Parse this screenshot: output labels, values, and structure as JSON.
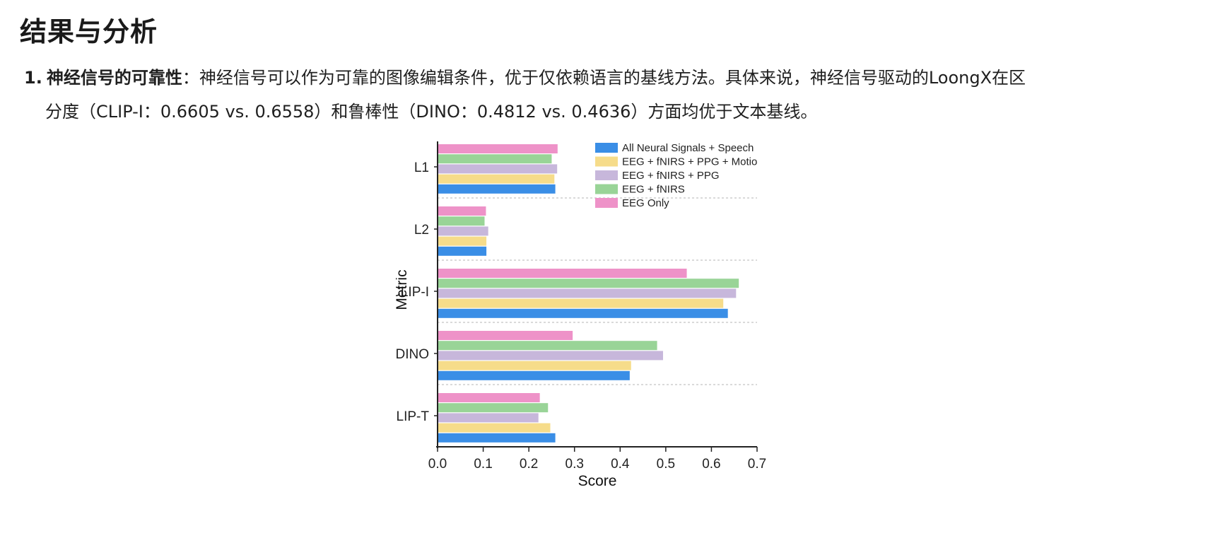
{
  "heading": "结果与分析",
  "item": {
    "number": "1.",
    "bold_label": "神经信号的可靠性",
    "text_line1": "：神经信号可以作为可靠的图像编辑条件，优于仅依赖语言的基线方法。具体来说，神经信号驱动的LoongX在区",
    "text_line2": "分度（CLIP-I：0.6605 vs. 0.6558）和鲁棒性（DINO：0.4812 vs. 0.4636）方面均优于文本基线。"
  },
  "chart_data": {
    "type": "bar",
    "orientation": "horizontal",
    "categories": [
      "L1",
      "L2",
      "CLIP-I",
      "DINO",
      "CLIP-T"
    ],
    "xlabel": "Score",
    "ylabel": "Metric",
    "xlim": [
      0.0,
      0.7
    ],
    "xticks": [
      "0.0",
      "0.1",
      "0.2",
      "0.3",
      "0.4",
      "0.5",
      "0.6",
      "0.7"
    ],
    "legend_position": "top-right",
    "series": [
      {
        "name": "All Neural Signals + Speech",
        "color": "#3a8ee6",
        "values": [
          0.258,
          0.107,
          0.636,
          0.421,
          0.258
        ]
      },
      {
        "name": "EEG + fNIRS + PPG + Motion",
        "color": "#f6dc8a",
        "values": [
          0.256,
          0.107,
          0.626,
          0.424,
          0.247
        ]
      },
      {
        "name": "EEG + fNIRS + PPG",
        "color": "#c7b7db",
        "values": [
          0.262,
          0.111,
          0.654,
          0.494,
          0.221
        ]
      },
      {
        "name": "EEG + fNIRS",
        "color": "#99d497",
        "values": [
          0.25,
          0.103,
          0.66,
          0.481,
          0.242
        ]
      },
      {
        "name": "EEG Only",
        "color": "#ee92c8",
        "values": [
          0.263,
          0.106,
          0.546,
          0.296,
          0.224
        ]
      }
    ]
  }
}
